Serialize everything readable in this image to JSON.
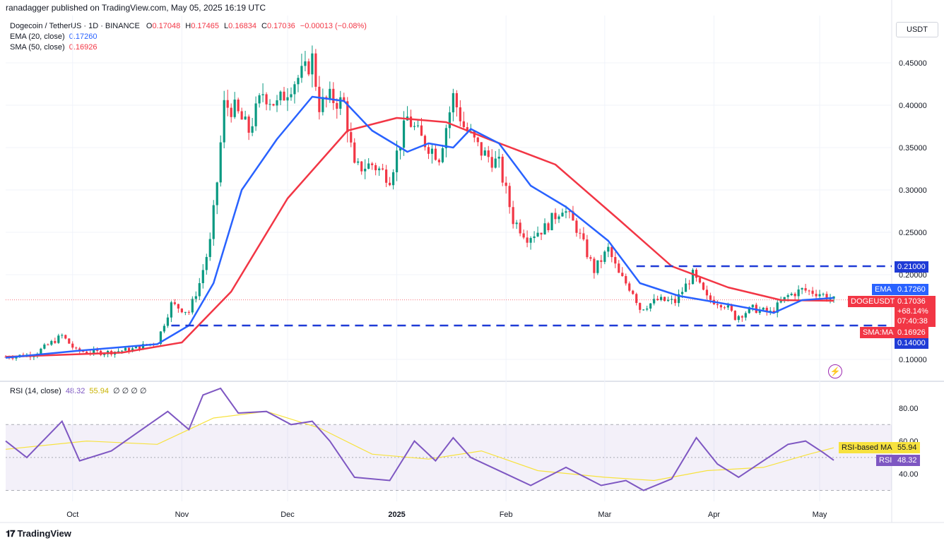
{
  "header": {
    "published": "ranadagger published on TradingView.com, May 05, 2025 16:19 UTC"
  },
  "legend": {
    "symbol": "Dogecoin / TetherUS · 1D · BINANCE",
    "o_label": "O",
    "o": "0.17048",
    "h_label": "H",
    "h": "0.17465",
    "l_label": "L",
    "l": "0.16834",
    "c_label": "C",
    "c": "0.17036",
    "change": "−0.00013 (−0.08%)",
    "ema_label": "EMA (20, close)",
    "ema_value": "0.17260",
    "sma_label": "SMA (50, close)",
    "sma_value": "0.16926",
    "rsi_label": "RSI (14, close)",
    "rsi_value": "48.32",
    "rsi_ma_value": "55.94",
    "rsi_extra": "∅ ∅ ∅ ∅"
  },
  "currency_button": "USDT",
  "price_axis": {
    "ticks": [
      "0.45000",
      "0.40000",
      "0.35000",
      "0.30000",
      "0.25000",
      "0.20000",
      "0.10000"
    ]
  },
  "tags": {
    "resistance": "0.21000",
    "support": "0.14000",
    "ema_name": "EMA",
    "ema_value": "0.17260",
    "symbol_name": "DOGEUSDT",
    "price": "0.17036",
    "pct": "+68.14%",
    "countdown": "07:40:38",
    "sma_name": "SMA:MA",
    "sma_value": "0.16926",
    "rsi_ma_name": "RSI-based MA",
    "rsi_ma_value": "55.94",
    "rsi_name": "RSI",
    "rsi_value": "48.32"
  },
  "rsi_axis": {
    "ticks": [
      "80.00",
      "60.00",
      "40.00"
    ]
  },
  "time_axis": {
    "labels": [
      "Oct",
      "Nov",
      "Dec",
      "2025",
      "Feb",
      "Mar",
      "Apr",
      "May"
    ]
  },
  "branding": {
    "logo": "TradingView"
  },
  "colors": {
    "up": "#089981",
    "down": "#f23645",
    "ema": "#2962ff",
    "sma": "#f23645",
    "rsi": "#7e57c2",
    "rsi_ma": "#f7e23e",
    "level": "#1f3bd6"
  },
  "chart_data": [
    {
      "type": "candlestick",
      "title": "Dogecoin / TetherUS · 1D · BINANCE",
      "x_range": [
        "2024-09-12",
        "2025-05-05"
      ],
      "ylim": [
        0.09,
        0.49
      ],
      "horizontal_levels": [
        0.21,
        0.14
      ],
      "close_path": [
        [
          "2024-09-12",
          0.103
        ],
        [
          "2024-09-20",
          0.106
        ],
        [
          "2024-09-28",
          0.128
        ],
        [
          "2024-10-02",
          0.11
        ],
        [
          "2024-10-10",
          0.108
        ],
        [
          "2024-10-18",
          0.112
        ],
        [
          "2024-10-25",
          0.121
        ],
        [
          "2024-10-29",
          0.165
        ],
        [
          "2024-11-03",
          0.156
        ],
        [
          "2024-11-06",
          0.19
        ],
        [
          "2024-11-09",
          0.238
        ],
        [
          "2024-11-11",
          0.31
        ],
        [
          "2024-11-13",
          0.4
        ],
        [
          "2024-11-16",
          0.395
        ],
        [
          "2024-11-20",
          0.37
        ],
        [
          "2024-11-24",
          0.415
        ],
        [
          "2024-11-28",
          0.4
        ],
        [
          "2024-12-02",
          0.425
        ],
        [
          "2024-12-06",
          0.44
        ],
        [
          "2024-12-08",
          0.455
        ],
        [
          "2024-12-10",
          0.4
        ],
        [
          "2024-12-13",
          0.408
        ],
        [
          "2024-12-17",
          0.402
        ],
        [
          "2024-12-20",
          0.325
        ],
        [
          "2024-12-25",
          0.33
        ],
        [
          "2024-12-30",
          0.315
        ],
        [
          "2025-01-04",
          0.385
        ],
        [
          "2025-01-08",
          0.36
        ],
        [
          "2025-01-13",
          0.34
        ],
        [
          "2025-01-17",
          0.41
        ],
        [
          "2025-01-20",
          0.375
        ],
        [
          "2025-01-25",
          0.345
        ],
        [
          "2025-01-30",
          0.33
        ],
        [
          "2025-02-03",
          0.265
        ],
        [
          "2025-02-07",
          0.245
        ],
        [
          "2025-02-12",
          0.255
        ],
        [
          "2025-02-17",
          0.28
        ],
        [
          "2025-02-21",
          0.255
        ],
        [
          "2025-02-26",
          0.205
        ],
        [
          "2025-03-02",
          0.23
        ],
        [
          "2025-03-05",
          0.2
        ],
        [
          "2025-03-09",
          0.18
        ],
        [
          "2025-03-11",
          0.16
        ],
        [
          "2025-03-16",
          0.17
        ],
        [
          "2025-03-21",
          0.168
        ],
        [
          "2025-03-26",
          0.2
        ],
        [
          "2025-03-30",
          0.172
        ],
        [
          "2025-04-04",
          0.165
        ],
        [
          "2025-04-07",
          0.15
        ],
        [
          "2025-04-12",
          0.16
        ],
        [
          "2025-04-17",
          0.155
        ],
        [
          "2025-04-22",
          0.175
        ],
        [
          "2025-04-26",
          0.182
        ],
        [
          "2025-05-01",
          0.178
        ],
        [
          "2025-05-05",
          0.17
        ]
      ]
    },
    {
      "type": "line",
      "name": "EMA (20, close)",
      "points": [
        [
          "2024-09-12",
          0.102
        ],
        [
          "2024-10-02",
          0.11
        ],
        [
          "2024-10-25",
          0.118
        ],
        [
          "2024-11-03",
          0.14
        ],
        [
          "2024-11-10",
          0.19
        ],
        [
          "2024-11-18",
          0.3
        ],
        [
          "2024-11-28",
          0.36
        ],
        [
          "2024-12-08",
          0.41
        ],
        [
          "2024-12-17",
          0.405
        ],
        [
          "2024-12-25",
          0.37
        ],
        [
          "2025-01-04",
          0.345
        ],
        [
          "2025-01-10",
          0.355
        ],
        [
          "2025-01-17",
          0.35
        ],
        [
          "2025-01-22",
          0.372
        ],
        [
          "2025-01-30",
          0.355
        ],
        [
          "2025-02-08",
          0.305
        ],
        [
          "2025-02-18",
          0.28
        ],
        [
          "2025-03-02",
          0.24
        ],
        [
          "2025-03-11",
          0.19
        ],
        [
          "2025-03-22",
          0.175
        ],
        [
          "2025-04-05",
          0.165
        ],
        [
          "2025-04-18",
          0.155
        ],
        [
          "2025-04-26",
          0.17
        ],
        [
          "2025-05-05",
          0.1726
        ]
      ]
    },
    {
      "type": "line",
      "name": "SMA (50, close)",
      "points": [
        [
          "2024-09-12",
          0.103
        ],
        [
          "2024-10-15",
          0.108
        ],
        [
          "2024-11-01",
          0.12
        ],
        [
          "2024-11-15",
          0.18
        ],
        [
          "2024-12-01",
          0.29
        ],
        [
          "2024-12-18",
          0.37
        ],
        [
          "2025-01-01",
          0.385
        ],
        [
          "2025-01-15",
          0.38
        ],
        [
          "2025-01-27",
          0.36
        ],
        [
          "2025-02-15",
          0.33
        ],
        [
          "2025-03-05",
          0.265
        ],
        [
          "2025-03-20",
          0.21
        ],
        [
          "2025-04-05",
          0.185
        ],
        [
          "2025-04-20",
          0.17
        ],
        [
          "2025-05-05",
          0.16926
        ]
      ]
    },
    {
      "type": "line",
      "name": "RSI (14, close)",
      "ylim": [
        20,
        95
      ],
      "bands": [
        70,
        50,
        30
      ],
      "points": [
        [
          "2024-09-12",
          60
        ],
        [
          "2024-09-18",
          50
        ],
        [
          "2024-09-28",
          72
        ],
        [
          "2024-10-03",
          48
        ],
        [
          "2024-10-12",
          54
        ],
        [
          "2024-10-20",
          66
        ],
        [
          "2024-10-28",
          78
        ],
        [
          "2024-11-03",
          67
        ],
        [
          "2024-11-07",
          88
        ],
        [
          "2024-11-12",
          92
        ],
        [
          "2024-11-17",
          77
        ],
        [
          "2024-11-25",
          78
        ],
        [
          "2024-12-02",
          70
        ],
        [
          "2024-12-08",
          72
        ],
        [
          "2024-12-13",
          60
        ],
        [
          "2024-12-20",
          38
        ],
        [
          "2024-12-30",
          36
        ],
        [
          "2025-01-06",
          60
        ],
        [
          "2025-01-12",
          48
        ],
        [
          "2025-01-17",
          62
        ],
        [
          "2025-01-22",
          50
        ],
        [
          "2025-02-01",
          40
        ],
        [
          "2025-02-08",
          33
        ],
        [
          "2025-02-18",
          44
        ],
        [
          "2025-02-28",
          33
        ],
        [
          "2025-03-07",
          36
        ],
        [
          "2025-03-12",
          30
        ],
        [
          "2025-03-20",
          37
        ],
        [
          "2025-03-27",
          62
        ],
        [
          "2025-04-02",
          46
        ],
        [
          "2025-04-08",
          38
        ],
        [
          "2025-04-15",
          48
        ],
        [
          "2025-04-22",
          58
        ],
        [
          "2025-04-27",
          60
        ],
        [
          "2025-05-02",
          53
        ],
        [
          "2025-05-05",
          48.32
        ]
      ]
    },
    {
      "type": "line",
      "name": "RSI-based MA",
      "points": [
        [
          "2024-09-12",
          55
        ],
        [
          "2024-10-05",
          60
        ],
        [
          "2024-10-25",
          58
        ],
        [
          "2024-11-10",
          74
        ],
        [
          "2024-11-25",
          78
        ],
        [
          "2024-12-10",
          68
        ],
        [
          "2024-12-25",
          52
        ],
        [
          "2025-01-10",
          49
        ],
        [
          "2025-01-25",
          54
        ],
        [
          "2025-02-10",
          42
        ],
        [
          "2025-03-01",
          38
        ],
        [
          "2025-03-15",
          36
        ],
        [
          "2025-03-30",
          42
        ],
        [
          "2025-04-15",
          44
        ],
        [
          "2025-04-28",
          52
        ],
        [
          "2025-05-05",
          55.94
        ]
      ]
    }
  ]
}
